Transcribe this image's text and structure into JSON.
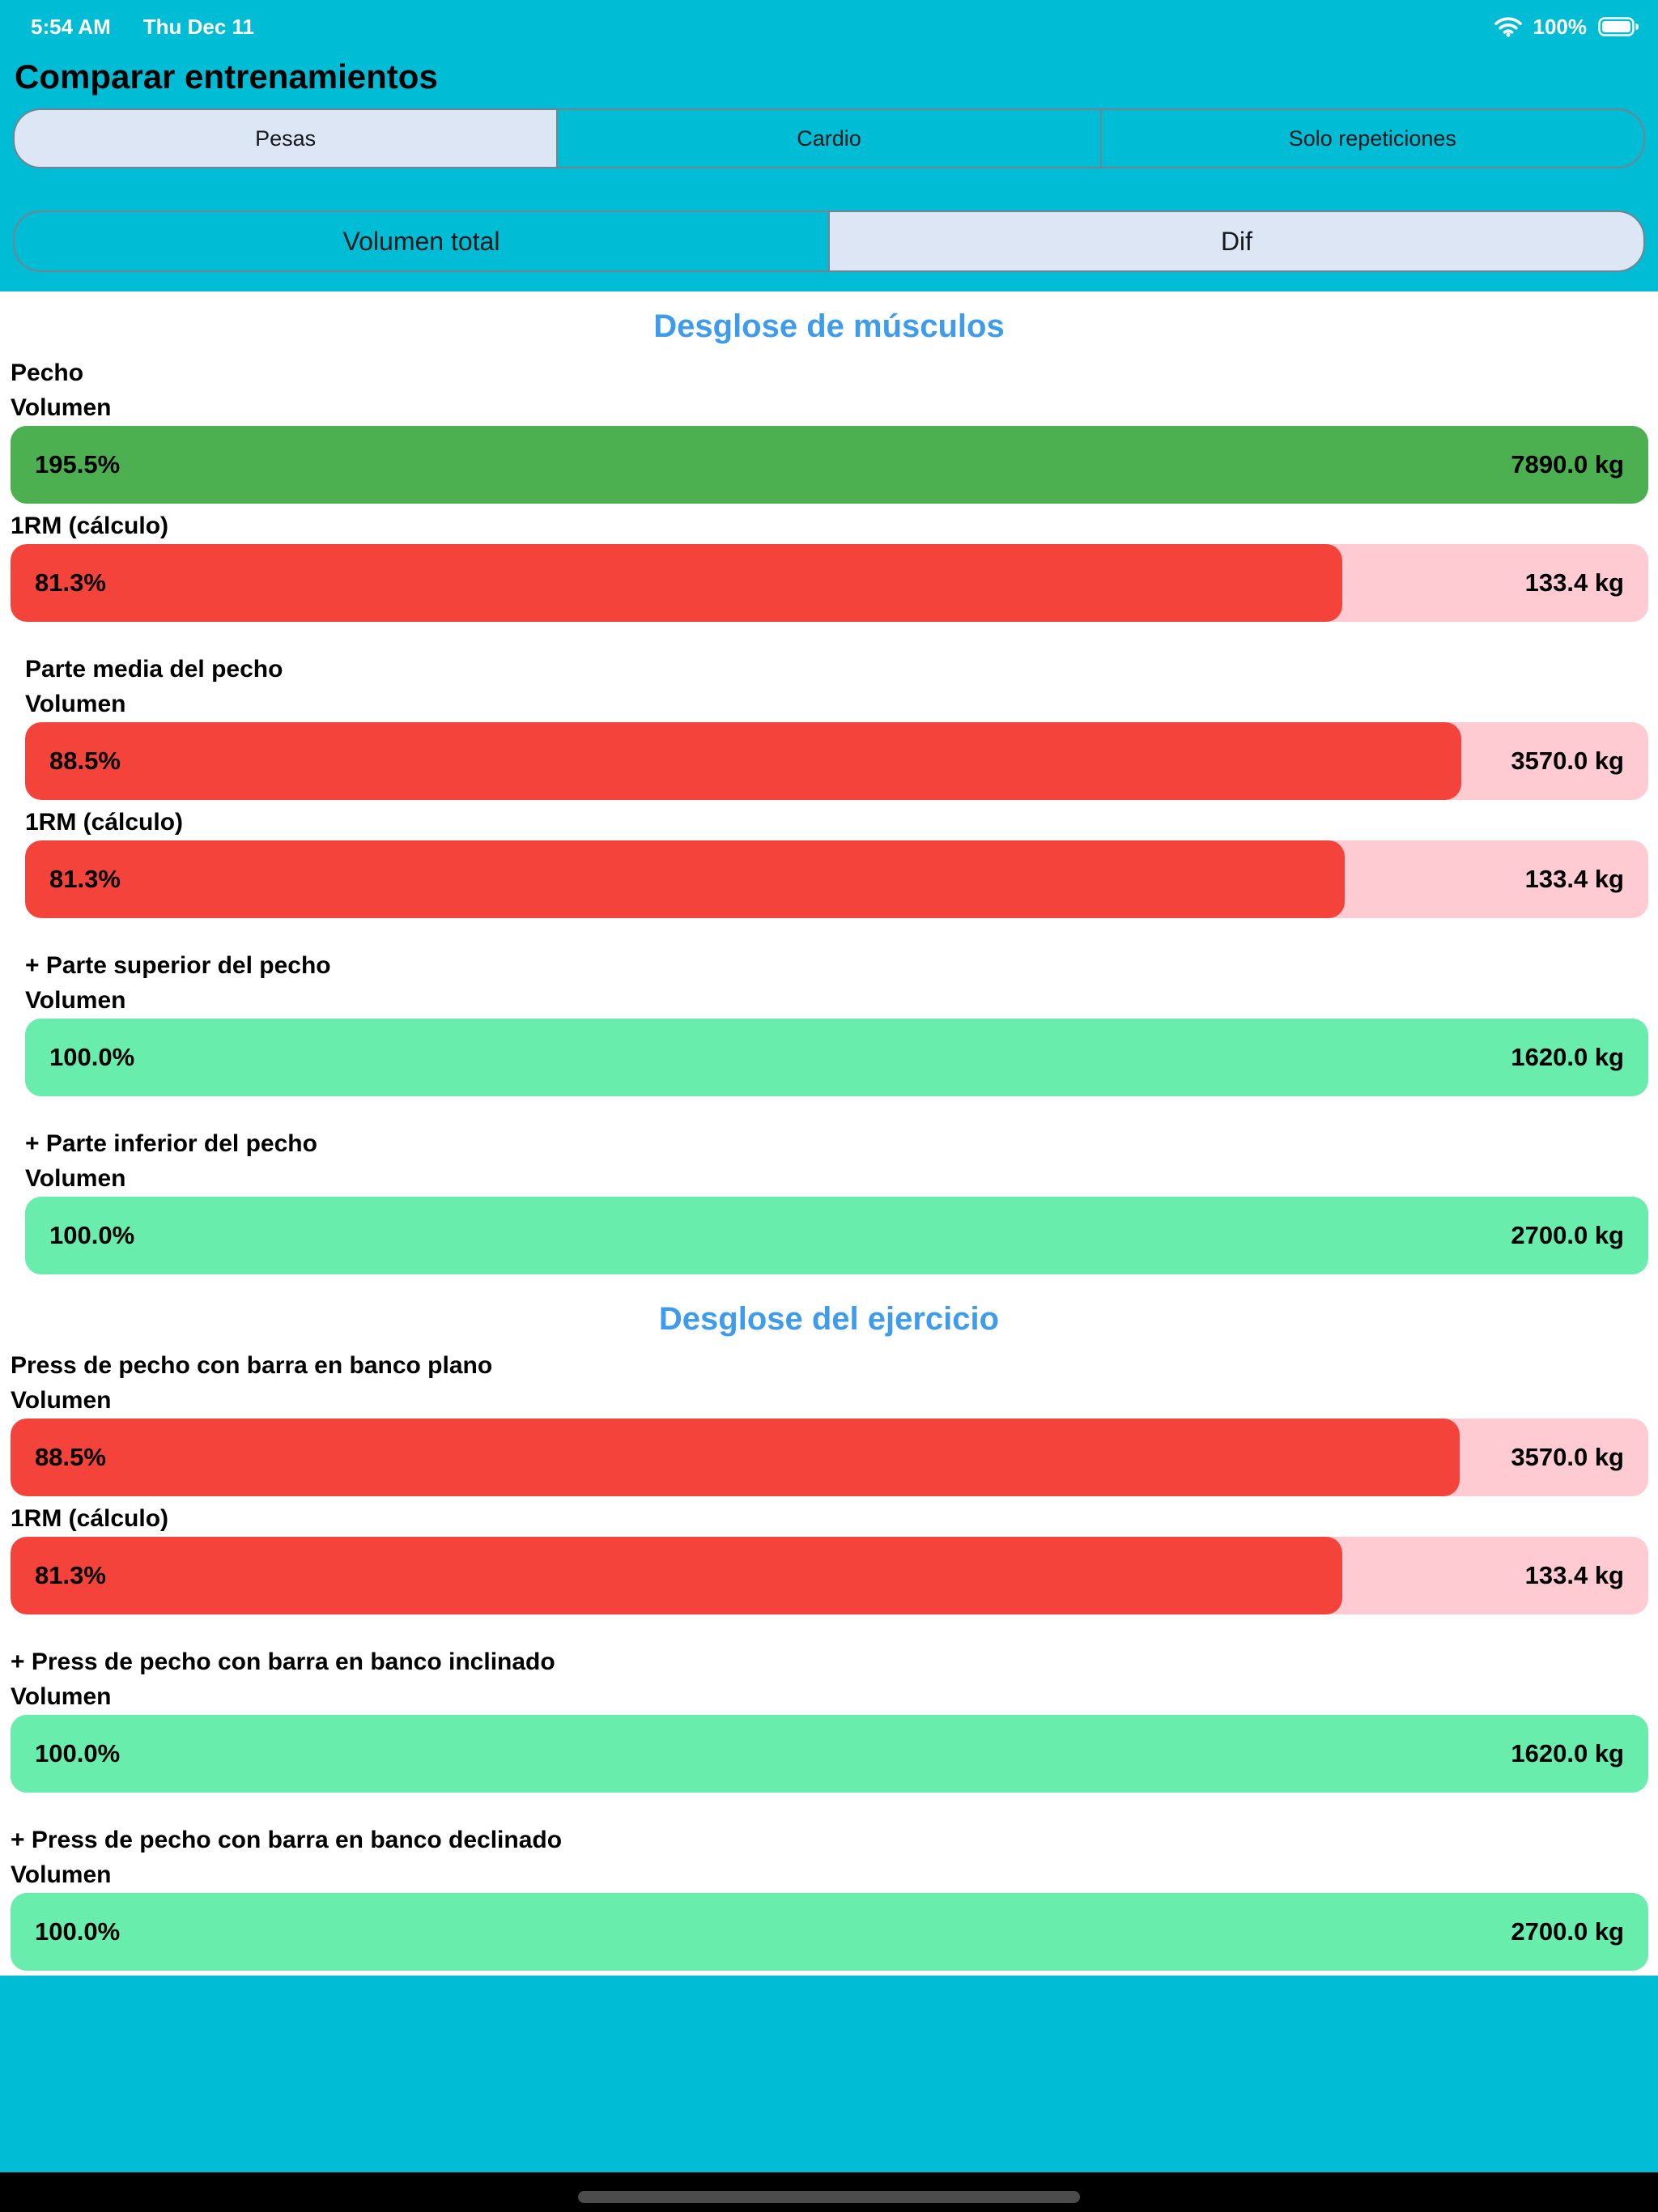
{
  "status_bar": {
    "time": "5:54 AM",
    "date": "Thu Dec 11",
    "battery_percent": "100%",
    "wifi_icon": "wifi-icon",
    "battery_icon": "battery-full-icon"
  },
  "header": {
    "title": "Comparar entrenamientos"
  },
  "type_segments": {
    "options": [
      {
        "label": "Pesas",
        "selected": true
      },
      {
        "label": "Cardio",
        "selected": false
      },
      {
        "label": "Solo repeticiones",
        "selected": false
      }
    ]
  },
  "mode_segments": {
    "options": [
      {
        "label": "Volumen total",
        "selected": false
      },
      {
        "label": "Dif",
        "selected": true
      }
    ]
  },
  "colors": {
    "background_cyan": "#00BCD4",
    "selected_segment": "#DCE6F5",
    "heading_blue": "#3E9CEB",
    "bar_green": "#4CAF50",
    "bar_red": "#F4433A",
    "bar_pink_track": "#FFCBD3",
    "bar_mint": "#68EDAD"
  },
  "sections": [
    {
      "heading": "Desglose de músculos",
      "items": [
        {
          "title": "Pecho",
          "indent": false,
          "rows": [
            {
              "label": "Volumen",
              "percent": "195.5%",
              "value": "7890.0 kg",
              "fill": 100,
              "style": "green"
            },
            {
              "label": "1RM (cálculo)",
              "percent": "81.3%",
              "value": "133.4 kg",
              "fill": 81.3,
              "style": "red"
            }
          ]
        },
        {
          "title": "Parte media del pecho",
          "indent": true,
          "rows": [
            {
              "label": "Volumen",
              "percent": "88.5%",
              "value": "3570.0 kg",
              "fill": 88.5,
              "style": "red"
            },
            {
              "label": "1RM (cálculo)",
              "percent": "81.3%",
              "value": "133.4 kg",
              "fill": 81.3,
              "style": "red"
            }
          ]
        },
        {
          "title": "+ Parte superior del pecho",
          "indent": true,
          "rows": [
            {
              "label": "Volumen",
              "percent": "100.0%",
              "value": "1620.0 kg",
              "fill": 100,
              "style": "mint"
            }
          ]
        },
        {
          "title": "+ Parte inferior del pecho",
          "indent": true,
          "rows": [
            {
              "label": "Volumen",
              "percent": "100.0%",
              "value": "2700.0 kg",
              "fill": 100,
              "style": "mint"
            }
          ]
        }
      ]
    },
    {
      "heading": "Desglose del ejercicio",
      "items": [
        {
          "title": "Press de pecho con barra en banco plano",
          "indent": false,
          "rows": [
            {
              "label": "Volumen",
              "percent": "88.5%",
              "value": "3570.0 kg",
              "fill": 88.5,
              "style": "red"
            },
            {
              "label": "1RM (cálculo)",
              "percent": "81.3%",
              "value": "133.4 kg",
              "fill": 81.3,
              "style": "red"
            }
          ]
        },
        {
          "title": "+ Press de pecho con barra en banco inclinado",
          "indent": false,
          "rows": [
            {
              "label": "Volumen",
              "percent": "100.0%",
              "value": "1620.0 kg",
              "fill": 100,
              "style": "mint"
            }
          ]
        },
        {
          "title": "+ Press de pecho con barra en banco declinado",
          "indent": false,
          "rows": [
            {
              "label": "Volumen",
              "percent": "100.0%",
              "value": "2700.0 kg",
              "fill": 100,
              "style": "mint"
            }
          ]
        }
      ]
    }
  ]
}
